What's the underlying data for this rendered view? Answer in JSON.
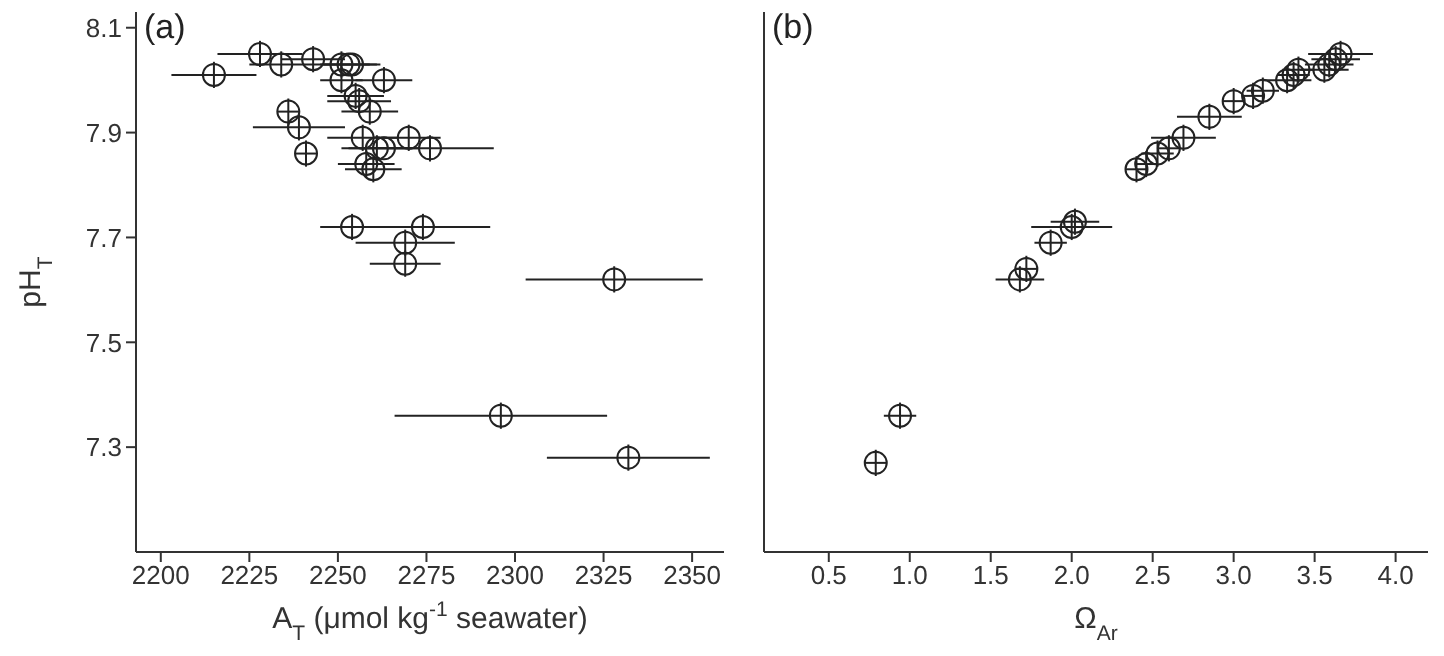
{
  "chart_data": [
    {
      "type": "scatter",
      "title": "(a)",
      "xlabel": "A$_{T}$ (μmol kg$^{-1}$ seawater)",
      "ylabel": "pH$_{T}$",
      "marker": "circle",
      "grid": false,
      "legend": false,
      "xlim": [
        2193,
        2359
      ],
      "ylim": [
        7.1,
        8.13
      ],
      "xticks": [
        2200,
        2225,
        2250,
        2275,
        2300,
        2325,
        2350
      ],
      "yticks": [
        7.3,
        7.5,
        7.7,
        7.9,
        8.1
      ],
      "series": [
        {
          "color": "#222222",
          "x": [
            2228,
            2234,
            2243,
            2215,
            2251,
            2253,
            2254,
            2251,
            2263,
            2255,
            2256,
            2259,
            2236,
            2239,
            2257,
            2270,
            2276,
            2261,
            2263,
            2241,
            2258,
            2260,
            2254,
            2274,
            2269,
            2269,
            2328,
            2296,
            2332
          ],
          "values": [
            8.05,
            8.03,
            8.04,
            8.01,
            8.03,
            8.03,
            8.03,
            8.0,
            8.0,
            7.97,
            7.96,
            7.94,
            7.94,
            7.91,
            7.89,
            7.89,
            7.87,
            7.87,
            7.87,
            7.86,
            7.84,
            7.83,
            7.72,
            7.72,
            7.69,
            7.65,
            7.62,
            7.36,
            7.28
          ],
          "xerrors": [
            12,
            9,
            9,
            12,
            8,
            8,
            8,
            6,
            8,
            8,
            9,
            8,
            3,
            13,
            10,
            9,
            18,
            10,
            10,
            3,
            8,
            8,
            9,
            19,
            14,
            10,
            25,
            30,
            23
          ],
          "errors": [
            0.025,
            0.025,
            0.025,
            0.025,
            0.025,
            null,
            null,
            0.025,
            0.025,
            0.025,
            0.025,
            0.025,
            0.025,
            0.025,
            0.025,
            0.025,
            0.025,
            0.025,
            null,
            0.025,
            0.025,
            0.025,
            0.025,
            0.025,
            0.025,
            0.025,
            0.025,
            0.025,
            0.025
          ]
        }
      ]
    },
    {
      "type": "scatter",
      "title": "(b)",
      "xlabel": "Ω$_{Ar}$",
      "marker": "circle",
      "grid": false,
      "legend": false,
      "tick_labels": "x",
      "xlim": [
        0.1,
        4.2
      ],
      "ylim": [
        7.1,
        8.13
      ],
      "xticks": [
        0.5,
        {
          "value": 1,
          "label": "1.0"
        },
        1.5,
        {
          "value": 2,
          "label": "2.0"
        },
        2.5,
        {
          "value": 3,
          "label": "3.0"
        },
        3.5,
        {
          "value": 4,
          "label": "4.0"
        }
      ],
      "yticks": [
        7.3,
        7.5,
        7.7,
        7.9,
        8.1
      ],
      "series": [
        {
          "color": "#222222",
          "x": [
            0.79,
            0.94,
            1.68,
            1.72,
            1.87,
            2.0,
            2.02,
            2.4,
            2.46,
            2.53,
            2.6,
            2.69,
            2.85,
            3.0,
            3.12,
            3.18,
            3.33,
            3.37,
            3.4,
            3.56,
            3.59,
            3.63,
            3.66
          ],
          "values": [
            7.27,
            7.36,
            7.62,
            7.64,
            7.69,
            7.72,
            7.73,
            7.83,
            7.84,
            7.86,
            7.87,
            7.89,
            7.93,
            7.96,
            7.97,
            7.98,
            8.0,
            8.01,
            8.02,
            8.02,
            8.03,
            8.04,
            8.05
          ],
          "xerrors": [
            0.07,
            0.1,
            0.15,
            0.07,
            0.1,
            0.25,
            0.15,
            0.07,
            0.07,
            0.1,
            0.07,
            0.2,
            0.2,
            0.07,
            0.07,
            0.1,
            0.15,
            0.1,
            0.1,
            0.15,
            0.15,
            0.15,
            0.2
          ],
          "errors": [
            0.025,
            0.025,
            0.025,
            0.025,
            0.025,
            0.025,
            0.025,
            0.025,
            0.025,
            0.025,
            0.025,
            0.025,
            0.025,
            0.025,
            0.025,
            0.025,
            0.025,
            0.025,
            0.025,
            0.025,
            0.025,
            0.025,
            0.025
          ]
        }
      ]
    }
  ]
}
